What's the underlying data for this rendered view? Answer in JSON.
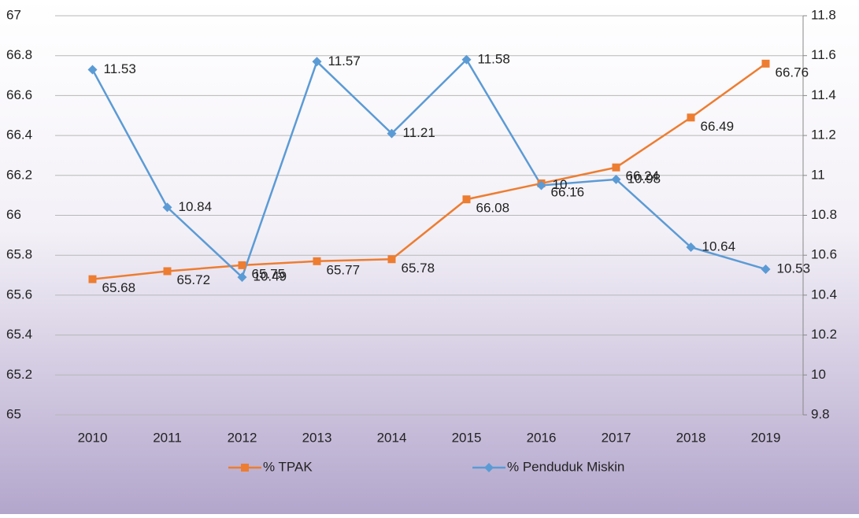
{
  "chart_data": {
    "type": "line",
    "categories": [
      "2010",
      "2011",
      "2012",
      "2013",
      "2014",
      "2015",
      "2016",
      "2017",
      "2018",
      "2019"
    ],
    "series": [
      {
        "name": "% TPAK",
        "color": "#ed7d31",
        "marker": "square",
        "axis": "y",
        "values": [
          65.68,
          65.72,
          65.75,
          65.77,
          65.78,
          66.08,
          66.16,
          66.24,
          66.49,
          66.76
        ]
      },
      {
        "name": "% Penduduk Miskin",
        "color": "#5b9bd5",
        "marker": "diamond",
        "axis": "y2",
        "values": [
          11.53,
          10.84,
          10.49,
          11.57,
          11.21,
          11.58,
          10.95,
          10.98,
          10.64,
          10.53
        ],
        "value_labels": [
          "11.53",
          "10.84",
          "10.49",
          "11.57",
          "11.21",
          "11.58",
          "10...",
          "10.98",
          "10.64",
          "10.53"
        ]
      }
    ],
    "ylim": [
      65,
      67
    ],
    "yticks": [
      65,
      65.2,
      65.4,
      65.6,
      65.8,
      66,
      66.2,
      66.4,
      66.6,
      66.8,
      67
    ],
    "y2lim": [
      9.8,
      11.8
    ],
    "y2ticks": [
      9.8,
      10,
      10.2,
      10.4,
      10.6,
      10.8,
      11,
      11.2,
      11.4,
      11.6,
      11.8
    ],
    "grid": true,
    "legend": "bottom"
  }
}
